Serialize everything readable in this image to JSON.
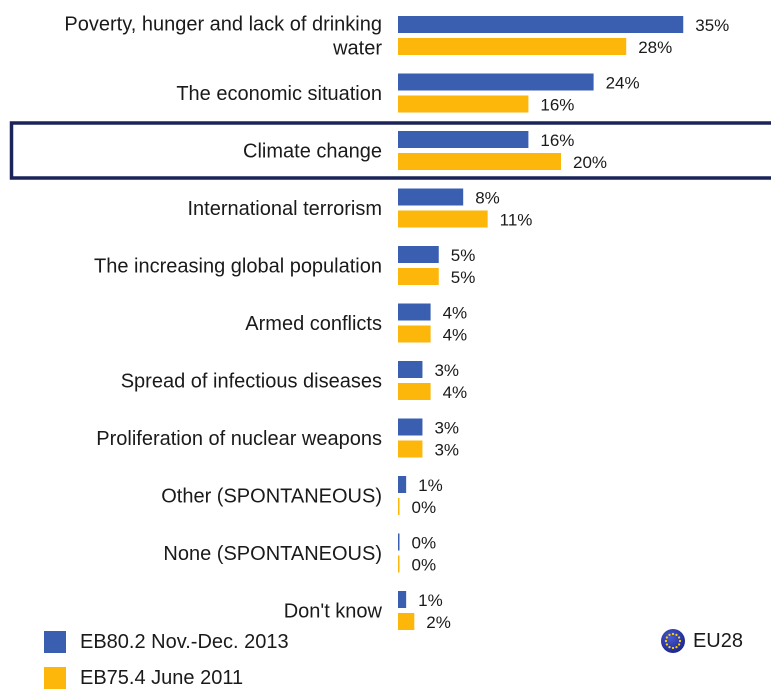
{
  "chart_data": {
    "type": "bar",
    "orientation": "horizontal",
    "categories": [
      "Poverty, hunger and lack of drinking water",
      "The economic situation",
      "Climate change",
      "International terrorism",
      "The increasing global population",
      "Armed conflicts",
      "Spread of infectious diseases",
      "Proliferation of nuclear weapons",
      "Other (SPONTANEOUS)",
      "None (SPONTANEOUS)",
      "Don't know"
    ],
    "category_lines": [
      [
        "Poverty, hunger and lack of drinking",
        "water"
      ],
      [
        "The economic situation"
      ],
      [
        "Climate change"
      ],
      [
        "International terrorism"
      ],
      [
        "The increasing global population"
      ],
      [
        "Armed conflicts"
      ],
      [
        "Spread of infectious diseases"
      ],
      [
        "Proliferation of nuclear weapons"
      ],
      [
        "Other (SPONTANEOUS)"
      ],
      [
        "None (SPONTANEOUS)"
      ],
      [
        "Don't know"
      ]
    ],
    "series": [
      {
        "name": "EB80.2 Nov.-Dec. 2013",
        "color": "#3a5fb0",
        "values": [
          35,
          24,
          16,
          8,
          5,
          4,
          3,
          3,
          1,
          0,
          1
        ],
        "labels": [
          "35%",
          "24%",
          "16%",
          "8%",
          "5%",
          "4%",
          "3%",
          "3%",
          "1%",
          "0%",
          "1%"
        ]
      },
      {
        "name": "EB75.4 June 2011",
        "color": "#fdb60a",
        "values": [
          28,
          16,
          20,
          11,
          5,
          4,
          4,
          3,
          0,
          0,
          2
        ],
        "labels": [
          "28%",
          "16%",
          "20%",
          "11%",
          "5%",
          "4%",
          "4%",
          "3%",
          "0%",
          "0%",
          "2%"
        ]
      }
    ],
    "xlim": [
      0,
      40
    ],
    "highlighted_category": "Climate change",
    "highlight_color": "#1b2458",
    "legend_placement": "bottom-left"
  },
  "legend": {
    "items": [
      {
        "label": "EB80.2 Nov.-Dec. 2013",
        "color": "#3a5fb0"
      },
      {
        "label": "EB75.4 June 2011",
        "color": "#fdb60a"
      }
    ]
  },
  "region": {
    "label": "EU28",
    "icon": "eu-flag-icon"
  }
}
